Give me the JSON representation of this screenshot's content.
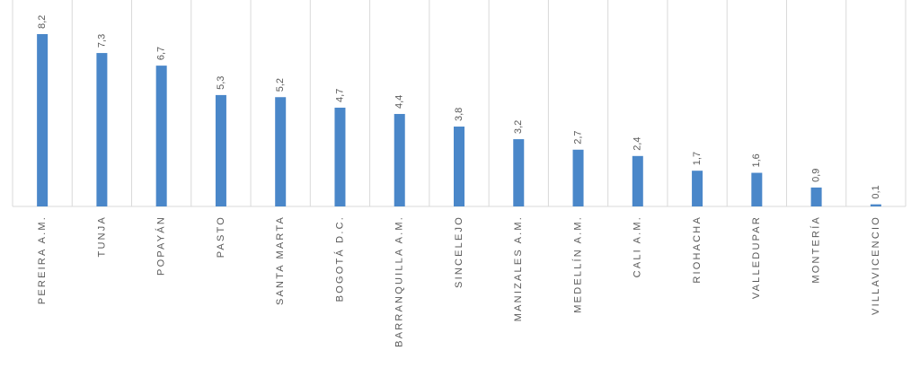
{
  "chart_data": {
    "type": "bar",
    "categories": [
      "PEREIRA A.M.",
      "TUNJA",
      "POPAYÁN",
      "PASTO",
      "SANTA MARTA",
      "BOGOTÁ D.C.",
      "BARRANQUILLA A.M.",
      "SINCELEJO",
      "MANIZALES A.M.",
      "MEDELLÍN A.M.",
      "CALI A.M.",
      "RIOHACHA",
      "VALLEDUPAR",
      "MONTERÍA",
      "VILLAVICENCIO"
    ],
    "values": [
      8.2,
      7.3,
      6.7,
      5.3,
      5.2,
      4.7,
      4.4,
      3.8,
      3.2,
      2.7,
      2.4,
      1.7,
      1.6,
      0.9,
      0.1
    ],
    "value_labels": [
      "8,2",
      "7,3",
      "6,7",
      "5,3",
      "5,2",
      "4,7",
      "4,4",
      "3,8",
      "3,2",
      "2,7",
      "2,4",
      "1,7",
      "1,6",
      "0,9",
      "0,1"
    ],
    "color": "#4a87c9"
  }
}
